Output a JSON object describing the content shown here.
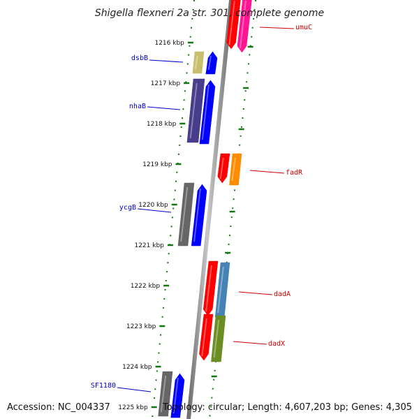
{
  "title": "Shigella flexneri 2a str. 301, complete genome",
  "footer": {
    "accession": "Accession: NC_004337",
    "topology": "Topology: circular; Length: 4,607,203 bp; Genes: 4,305"
  },
  "colors": {
    "forward_label": "#0000cc",
    "reverse_label": "#cc0000",
    "tick": "#117711",
    "backbone": "#888888"
  },
  "ticks": [
    {
      "label": "1216 kbp"
    },
    {
      "label": "1217 kbp"
    },
    {
      "label": "1218 kbp"
    },
    {
      "label": "1219 kbp"
    },
    {
      "label": "1220 kbp"
    },
    {
      "label": "1221 kbp"
    },
    {
      "label": "1222 kbp"
    },
    {
      "label": "1223 kbp"
    },
    {
      "label": "1224 kbp"
    },
    {
      "label": "1225 kbp"
    }
  ],
  "gene_labels": [
    {
      "name": "umuC",
      "strand": "reverse"
    },
    {
      "name": "dsbB",
      "strand": "forward"
    },
    {
      "name": "nhaB",
      "strand": "forward"
    },
    {
      "name": "fadR",
      "strand": "reverse"
    },
    {
      "name": "ycgB",
      "strand": "forward"
    },
    {
      "name": "dadA",
      "strand": "reverse"
    },
    {
      "name": "dadX",
      "strand": "reverse"
    },
    {
      "name": "SF1180",
      "strand": "forward"
    }
  ]
}
